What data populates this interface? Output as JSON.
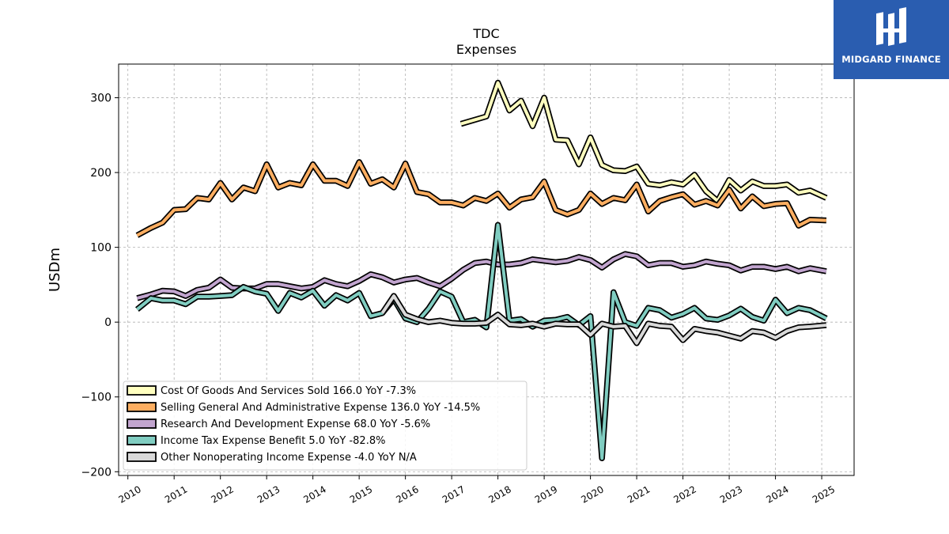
{
  "brand": {
    "name": "MIDGARD FINANCE",
    "bg": "#2a5db0"
  },
  "chart_data": {
    "type": "line",
    "title": "TDC",
    "subtitle": "Expenses",
    "ylabel": "USDm",
    "xlabel": "",
    "ylim": [
      -205,
      345
    ],
    "xlim": [
      2009.8,
      2025.7
    ],
    "yticks": [
      -200,
      -100,
      0,
      100,
      200,
      300
    ],
    "ytick_labels": [
      "−200",
      "−100",
      "0",
      "100",
      "200",
      "300"
    ],
    "xticks": [
      2010,
      2011,
      2012,
      2013,
      2014,
      2015,
      2016,
      2017,
      2018,
      2019,
      2020,
      2021,
      2022,
      2023,
      2024,
      2025
    ],
    "xtick_labels": [
      "2010",
      "2011",
      "2012",
      "2013",
      "2014",
      "2015",
      "2016",
      "2017",
      "2018",
      "2019",
      "2020",
      "2021",
      "2022",
      "2023",
      "2024",
      "2025"
    ],
    "grid": true,
    "legend_position": "lower-left",
    "series": [
      {
        "name": "Cost Of Goods And Services Sold  166.0 YoY -7.3%",
        "color": "#ffffbf",
        "points": [
          [
            2017.2,
            265
          ],
          [
            2017.75,
            275
          ],
          [
            2018.0,
            320
          ],
          [
            2018.25,
            283
          ],
          [
            2018.5,
            296
          ],
          [
            2018.75,
            262
          ],
          [
            2019.0,
            300
          ],
          [
            2019.25,
            244
          ],
          [
            2019.5,
            243
          ],
          [
            2019.75,
            211
          ],
          [
            2020.0,
            247
          ],
          [
            2020.25,
            210
          ],
          [
            2020.5,
            203
          ],
          [
            2020.75,
            202
          ],
          [
            2021.0,
            208
          ],
          [
            2021.25,
            185
          ],
          [
            2021.5,
            183
          ],
          [
            2021.75,
            187
          ],
          [
            2022.0,
            184
          ],
          [
            2022.25,
            197
          ],
          [
            2022.5,
            175
          ],
          [
            2022.75,
            162
          ],
          [
            2023.0,
            190
          ],
          [
            2023.25,
            176
          ],
          [
            2023.5,
            188
          ],
          [
            2023.75,
            182
          ],
          [
            2024.0,
            182
          ],
          [
            2024.25,
            184
          ],
          [
            2024.5,
            173
          ],
          [
            2024.75,
            176
          ],
          [
            2025.1,
            166
          ]
        ]
      },
      {
        "name": "Selling General And Administrative Expense  136.0 YoY -14.5%",
        "color": "#fdae61",
        "points": [
          [
            2010.2,
            116
          ],
          [
            2010.5,
            126
          ],
          [
            2010.75,
            133
          ],
          [
            2011.0,
            150
          ],
          [
            2011.25,
            151
          ],
          [
            2011.5,
            166
          ],
          [
            2011.75,
            164
          ],
          [
            2012.0,
            186
          ],
          [
            2012.25,
            164
          ],
          [
            2012.5,
            180
          ],
          [
            2012.75,
            175
          ],
          [
            2013.0,
            211
          ],
          [
            2013.25,
            180
          ],
          [
            2013.5,
            186
          ],
          [
            2013.75,
            183
          ],
          [
            2014.0,
            211
          ],
          [
            2014.25,
            189
          ],
          [
            2014.5,
            189
          ],
          [
            2014.75,
            182
          ],
          [
            2015.0,
            214
          ],
          [
            2015.25,
            185
          ],
          [
            2015.5,
            191
          ],
          [
            2015.75,
            180
          ],
          [
            2016.0,
            212
          ],
          [
            2016.25,
            174
          ],
          [
            2016.5,
            171
          ],
          [
            2016.75,
            160
          ],
          [
            2017.0,
            160
          ],
          [
            2017.25,
            156
          ],
          [
            2017.5,
            166
          ],
          [
            2017.75,
            162
          ],
          [
            2018.0,
            172
          ],
          [
            2018.25,
            153
          ],
          [
            2018.5,
            164
          ],
          [
            2018.75,
            167
          ],
          [
            2019.0,
            188
          ],
          [
            2019.25,
            150
          ],
          [
            2019.5,
            144
          ],
          [
            2019.75,
            150
          ],
          [
            2020.0,
            172
          ],
          [
            2020.25,
            158
          ],
          [
            2020.5,
            166
          ],
          [
            2020.75,
            163
          ],
          [
            2021.0,
            184
          ],
          [
            2021.25,
            148
          ],
          [
            2021.5,
            162
          ],
          [
            2021.75,
            167
          ],
          [
            2022.0,
            171
          ],
          [
            2022.25,
            157
          ],
          [
            2022.5,
            162
          ],
          [
            2022.75,
            156
          ],
          [
            2023.0,
            177
          ],
          [
            2023.25,
            152
          ],
          [
            2023.5,
            168
          ],
          [
            2023.75,
            155
          ],
          [
            2024.0,
            158
          ],
          [
            2024.25,
            159
          ],
          [
            2024.5,
            129
          ],
          [
            2024.75,
            137
          ],
          [
            2025.1,
            136
          ]
        ]
      },
      {
        "name": "Research And Development Expense  68.0 YoY -5.6%",
        "color": "#c2a5cf",
        "points": [
          [
            2010.2,
            32
          ],
          [
            2010.5,
            37
          ],
          [
            2010.75,
            42
          ],
          [
            2011.0,
            41
          ],
          [
            2011.25,
            35
          ],
          [
            2011.5,
            43
          ],
          [
            2011.75,
            46
          ],
          [
            2012.0,
            57
          ],
          [
            2012.25,
            46
          ],
          [
            2012.5,
            45
          ],
          [
            2012.75,
            45
          ],
          [
            2013.0,
            51
          ],
          [
            2013.25,
            51
          ],
          [
            2013.5,
            48
          ],
          [
            2013.75,
            45
          ],
          [
            2014.0,
            47
          ],
          [
            2014.25,
            56
          ],
          [
            2014.5,
            51
          ],
          [
            2014.75,
            48
          ],
          [
            2015.0,
            55
          ],
          [
            2015.25,
            64
          ],
          [
            2015.5,
            60
          ],
          [
            2015.75,
            53
          ],
          [
            2016.0,
            57
          ],
          [
            2016.25,
            59
          ],
          [
            2016.5,
            53
          ],
          [
            2016.75,
            48
          ],
          [
            2017.0,
            58
          ],
          [
            2017.25,
            70
          ],
          [
            2017.5,
            79
          ],
          [
            2017.75,
            81
          ],
          [
            2018.0,
            77
          ],
          [
            2018.25,
            77
          ],
          [
            2018.5,
            79
          ],
          [
            2018.75,
            84
          ],
          [
            2019.0,
            82
          ],
          [
            2019.25,
            80
          ],
          [
            2019.5,
            82
          ],
          [
            2019.75,
            87
          ],
          [
            2020.0,
            83
          ],
          [
            2020.25,
            73
          ],
          [
            2020.5,
            84
          ],
          [
            2020.75,
            91
          ],
          [
            2021.0,
            88
          ],
          [
            2021.25,
            76
          ],
          [
            2021.5,
            79
          ],
          [
            2021.75,
            79
          ],
          [
            2022.0,
            74
          ],
          [
            2022.25,
            76
          ],
          [
            2022.5,
            81
          ],
          [
            2022.75,
            78
          ],
          [
            2023.0,
            76
          ],
          [
            2023.25,
            69
          ],
          [
            2023.5,
            74
          ],
          [
            2023.75,
            74
          ],
          [
            2024.0,
            71
          ],
          [
            2024.25,
            74
          ],
          [
            2024.5,
            68
          ],
          [
            2024.75,
            72
          ],
          [
            2025.1,
            68
          ]
        ]
      },
      {
        "name": "Income Tax Expense Benefit  5.0 YoY -82.8%",
        "color": "#80cdc1",
        "points": [
          [
            2010.2,
            17
          ],
          [
            2010.5,
            32
          ],
          [
            2010.75,
            29
          ],
          [
            2011.0,
            29
          ],
          [
            2011.25,
            24
          ],
          [
            2011.5,
            34
          ],
          [
            2011.75,
            34
          ],
          [
            2012.0,
            35
          ],
          [
            2012.25,
            36
          ],
          [
            2012.5,
            47
          ],
          [
            2012.75,
            41
          ],
          [
            2013.0,
            38
          ],
          [
            2013.25,
            15
          ],
          [
            2013.5,
            39
          ],
          [
            2013.75,
            33
          ],
          [
            2014.0,
            42
          ],
          [
            2014.25,
            22
          ],
          [
            2014.5,
            36
          ],
          [
            2014.75,
            29
          ],
          [
            2015.0,
            39
          ],
          [
            2015.25,
            8
          ],
          [
            2015.5,
            12
          ],
          [
            2015.75,
            31
          ],
          [
            2016.0,
            5
          ],
          [
            2016.25,
            0
          ],
          [
            2016.5,
            18
          ],
          [
            2016.75,
            41
          ],
          [
            2017.0,
            34
          ],
          [
            2017.25,
            0
          ],
          [
            2017.5,
            3
          ],
          [
            2017.75,
            -7
          ],
          [
            2018.0,
            130
          ],
          [
            2018.25,
            2
          ],
          [
            2018.5,
            4
          ],
          [
            2018.75,
            -6
          ],
          [
            2019.0,
            2
          ],
          [
            2019.25,
            3
          ],
          [
            2019.5,
            7
          ],
          [
            2019.75,
            -4
          ],
          [
            2020.0,
            8
          ],
          [
            2020.25,
            -182
          ],
          [
            2020.5,
            40
          ],
          [
            2020.75,
            0
          ],
          [
            2021.0,
            -5
          ],
          [
            2021.25,
            19
          ],
          [
            2021.5,
            16
          ],
          [
            2021.75,
            6
          ],
          [
            2022.0,
            11
          ],
          [
            2022.25,
            19
          ],
          [
            2022.5,
            5
          ],
          [
            2022.75,
            3
          ],
          [
            2023.0,
            9
          ],
          [
            2023.25,
            18
          ],
          [
            2023.5,
            7
          ],
          [
            2023.75,
            2
          ],
          [
            2024.0,
            30
          ],
          [
            2024.25,
            12
          ],
          [
            2024.5,
            19
          ],
          [
            2024.75,
            16
          ],
          [
            2025.1,
            5
          ]
        ]
      },
      {
        "name": "Other Nonoperating Income Expense  -4.0 YoY N/A",
        "color": "#d9d9d9",
        "points": [
          [
            2015.5,
            12
          ],
          [
            2015.75,
            35
          ],
          [
            2016.0,
            10
          ],
          [
            2016.25,
            4
          ],
          [
            2016.5,
            0
          ],
          [
            2016.75,
            2
          ],
          [
            2017.0,
            -1
          ],
          [
            2017.25,
            -2
          ],
          [
            2017.5,
            -2
          ],
          [
            2017.75,
            -1
          ],
          [
            2018.0,
            10
          ],
          [
            2018.25,
            -3
          ],
          [
            2018.5,
            -4
          ],
          [
            2018.75,
            -2
          ],
          [
            2019.0,
            -6
          ],
          [
            2019.25,
            -2
          ],
          [
            2019.5,
            -3
          ],
          [
            2019.75,
            -3
          ],
          [
            2020.0,
            -17
          ],
          [
            2020.25,
            -2
          ],
          [
            2020.5,
            -6
          ],
          [
            2020.75,
            -5
          ],
          [
            2021.0,
            -28
          ],
          [
            2021.25,
            -2
          ],
          [
            2021.5,
            -5
          ],
          [
            2021.75,
            -6
          ],
          [
            2022.0,
            -24
          ],
          [
            2022.25,
            -9
          ],
          [
            2022.5,
            -12
          ],
          [
            2022.75,
            -14
          ],
          [
            2023.0,
            -18
          ],
          [
            2023.25,
            -22
          ],
          [
            2023.5,
            -12
          ],
          [
            2023.75,
            -14
          ],
          [
            2024.0,
            -21
          ],
          [
            2024.25,
            -12
          ],
          [
            2024.5,
            -7
          ],
          [
            2024.75,
            -6
          ],
          [
            2025.1,
            -4
          ]
        ]
      }
    ]
  }
}
